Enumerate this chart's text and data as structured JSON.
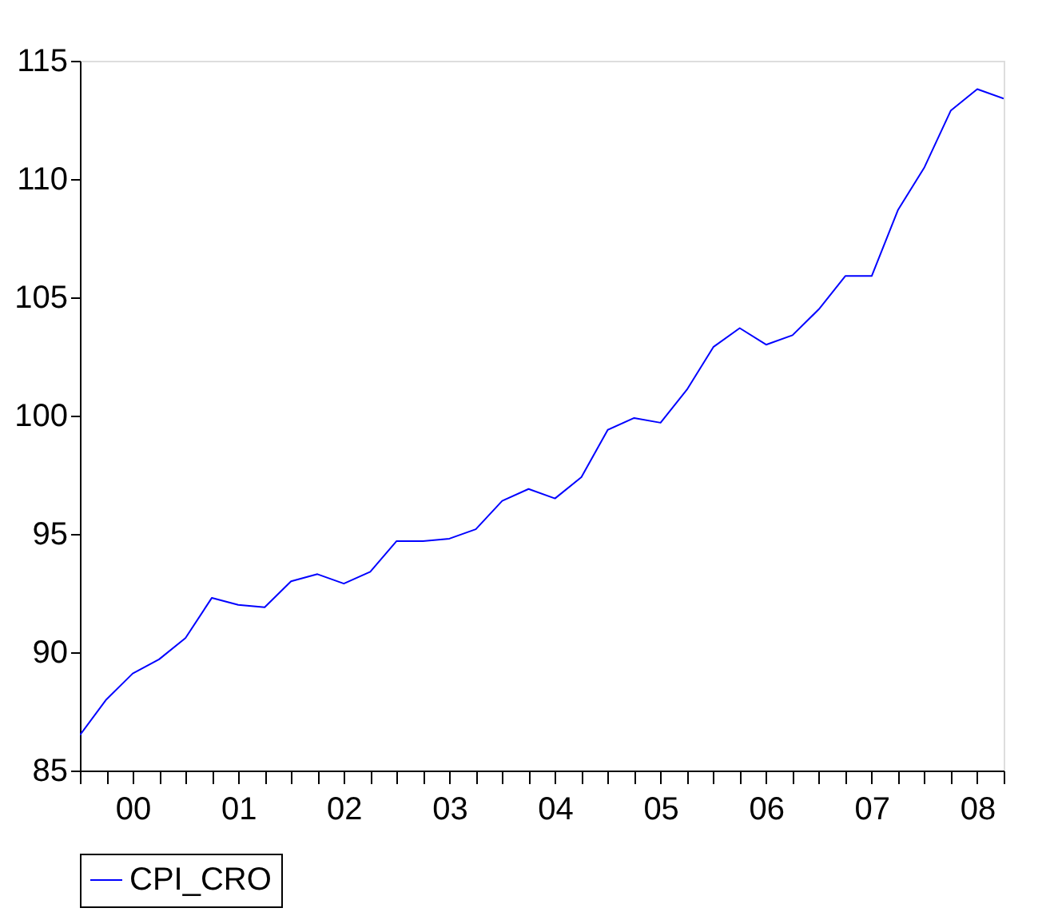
{
  "chart_data": {
    "type": "line",
    "categories": [
      null,
      null,
      "00",
      null,
      null,
      null,
      "01",
      null,
      null,
      null,
      "02",
      null,
      null,
      null,
      "03",
      null,
      null,
      null,
      "04",
      null,
      null,
      null,
      "05",
      null,
      null,
      null,
      "06",
      null,
      null,
      null,
      "07",
      null,
      null,
      null,
      "08",
      null
    ],
    "series": [
      {
        "name": "CPI_CRO",
        "color": "#0000ff",
        "values": [
          86.5,
          88.0,
          89.1,
          89.7,
          90.6,
          92.3,
          92.0,
          91.9,
          93.0,
          93.3,
          92.9,
          93.4,
          94.7,
          94.7,
          94.8,
          95.2,
          96.4,
          96.9,
          96.5,
          97.4,
          99.4,
          99.9,
          99.7,
          101.1,
          102.9,
          103.7,
          103.0,
          103.4,
          104.5,
          105.9,
          105.9,
          108.7,
          110.5,
          112.9,
          113.8,
          113.4
        ]
      }
    ],
    "ylim": [
      85,
      115
    ],
    "yticks": [
      85,
      90,
      95,
      100,
      105,
      110,
      115
    ],
    "grid": false,
    "legend": "bottom",
    "marker": "none",
    "line_style": "solid"
  }
}
